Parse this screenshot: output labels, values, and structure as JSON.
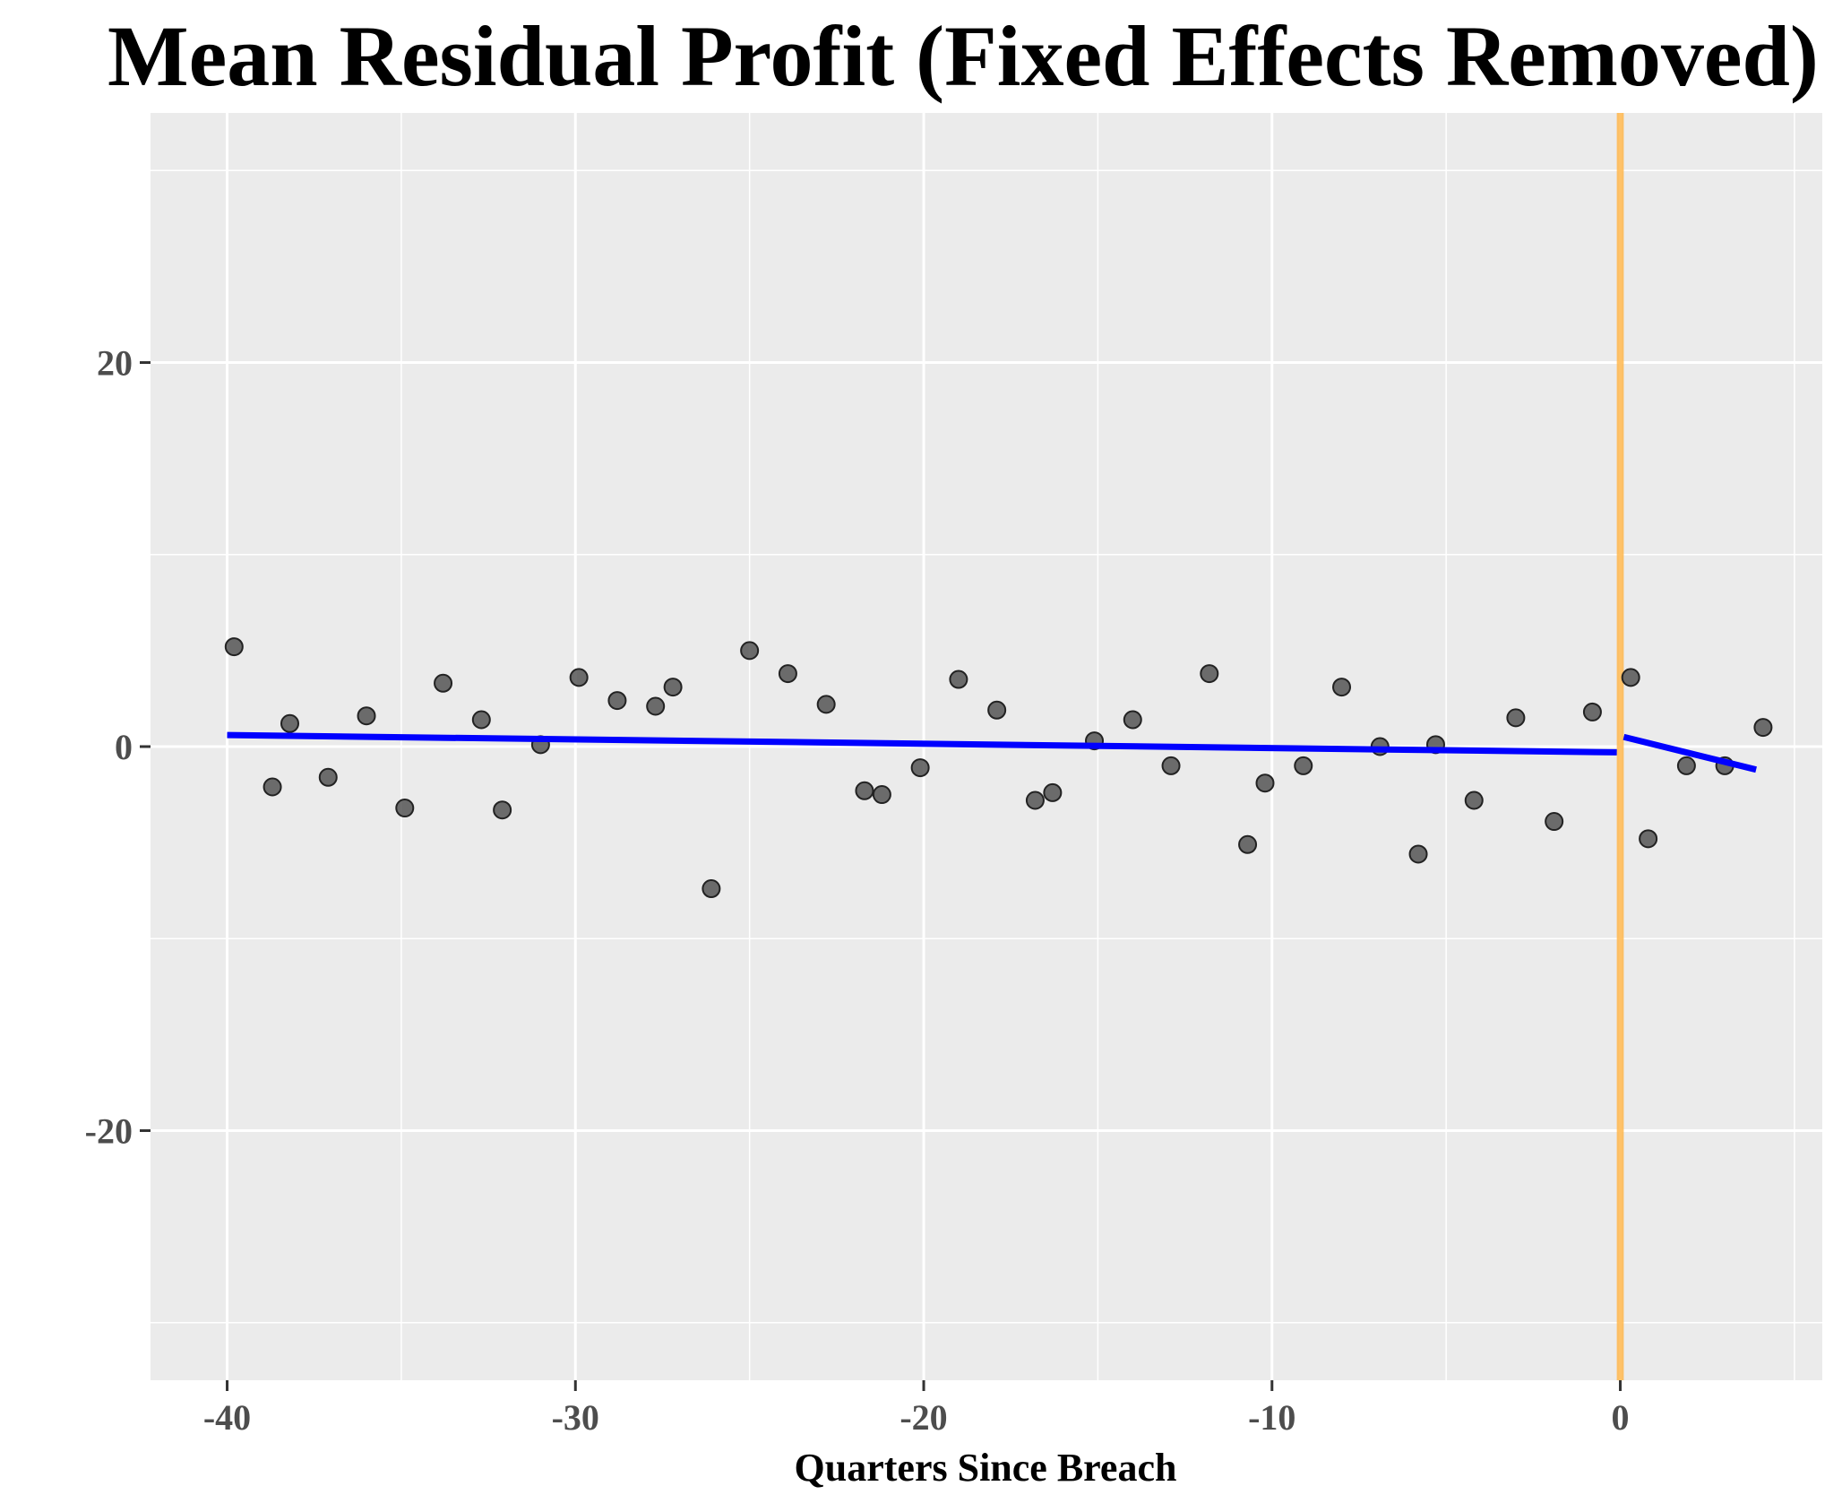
{
  "chart_data": {
    "type": "scatter",
    "title": "Mean Residual Profit (Fixed Effects Removed)",
    "xlabel": "Quarters Since Breach",
    "ylabel": "",
    "xlim": [
      -42.2,
      5.8
    ],
    "ylim": [
      -33.0,
      33.0
    ],
    "x_ticks": [
      -40,
      -30,
      -20,
      -10,
      0
    ],
    "x_tick_labels": [
      "-40",
      "-30",
      "-20",
      "-10",
      "0"
    ],
    "y_ticks": [
      -20,
      0,
      20
    ],
    "y_tick_labels": [
      "-20",
      "0",
      "20"
    ],
    "grid": true,
    "legend": "none",
    "colors": {
      "panel": "#ebebeb",
      "grid": "#ffffff",
      "points": "#555555",
      "fit_line": "#0000ff",
      "breach_band": "#ffb74d"
    },
    "breach_band": {
      "x_from": -0.1,
      "x_to": 0.1
    },
    "points": [
      {
        "x": -39.8,
        "y": 5.2
      },
      {
        "x": -38.7,
        "y": -2.1
      },
      {
        "x": -38.2,
        "y": 1.2
      },
      {
        "x": -37.1,
        "y": -1.6
      },
      {
        "x": -36.0,
        "y": 1.6
      },
      {
        "x": -34.9,
        "y": -3.2
      },
      {
        "x": -33.8,
        "y": 3.3
      },
      {
        "x": -32.7,
        "y": 1.4
      },
      {
        "x": -32.1,
        "y": -3.3
      },
      {
        "x": -31.0,
        "y": 0.1
      },
      {
        "x": -29.9,
        "y": 3.6
      },
      {
        "x": -28.8,
        "y": 2.4
      },
      {
        "x": -27.7,
        "y": 2.1
      },
      {
        "x": -27.2,
        "y": 3.1
      },
      {
        "x": -26.1,
        "y": -7.4
      },
      {
        "x": -25.0,
        "y": 5.0
      },
      {
        "x": -23.9,
        "y": 3.8
      },
      {
        "x": -22.8,
        "y": 2.2
      },
      {
        "x": -21.7,
        "y": -2.3
      },
      {
        "x": -21.2,
        "y": -2.5
      },
      {
        "x": -20.1,
        "y": -1.1
      },
      {
        "x": -19.0,
        "y": 3.5
      },
      {
        "x": -17.9,
        "y": 1.9
      },
      {
        "x": -16.8,
        "y": -2.8
      },
      {
        "x": -16.3,
        "y": -2.4
      },
      {
        "x": -15.1,
        "y": 0.3
      },
      {
        "x": -14.0,
        "y": 1.4
      },
      {
        "x": -12.9,
        "y": -1.0
      },
      {
        "x": -11.8,
        "y": 3.8
      },
      {
        "x": -10.7,
        "y": -5.1
      },
      {
        "x": -10.2,
        "y": -1.9
      },
      {
        "x": -9.1,
        "y": -1.0
      },
      {
        "x": -8.0,
        "y": 3.1
      },
      {
        "x": -6.9,
        "y": 0.0
      },
      {
        "x": -5.8,
        "y": -5.6
      },
      {
        "x": -5.3,
        "y": 0.1
      },
      {
        "x": -4.2,
        "y": -2.8
      },
      {
        "x": -3.0,
        "y": 1.5
      },
      {
        "x": -1.9,
        "y": -3.9
      },
      {
        "x": -0.8,
        "y": 1.8
      },
      {
        "x": 0.3,
        "y": 3.6
      },
      {
        "x": 0.8,
        "y": -4.8
      },
      {
        "x": 1.9,
        "y": -1.0
      },
      {
        "x": 3.0,
        "y": -1.0
      },
      {
        "x": 4.1,
        "y": 1.0
      }
    ],
    "fit_lines": [
      {
        "x": [
          -40.0,
          -0.1
        ],
        "y": [
          0.6,
          -0.3
        ]
      },
      {
        "x": [
          0.1,
          3.9
        ],
        "y": [
          0.5,
          -1.2
        ]
      }
    ]
  }
}
